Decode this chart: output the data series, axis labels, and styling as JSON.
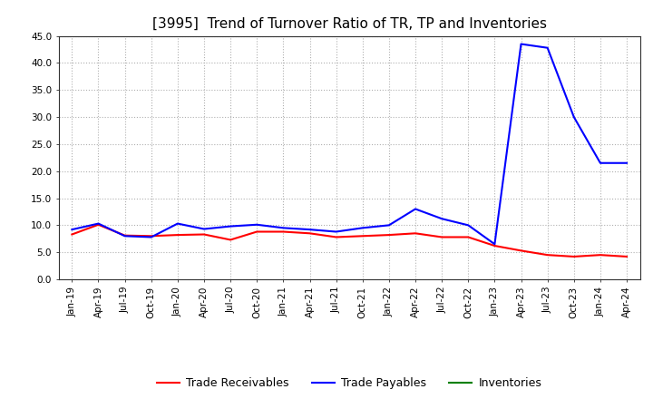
{
  "title": "[3995]  Trend of Turnover Ratio of TR, TP and Inventories",
  "ylim": [
    0.0,
    45.0
  ],
  "yticks": [
    0.0,
    5.0,
    10.0,
    15.0,
    20.0,
    25.0,
    30.0,
    35.0,
    40.0,
    45.0
  ],
  "trade_receivables": {
    "values": [
      8.3,
      10.1,
      8.1,
      8.0,
      8.2,
      8.3,
      7.3,
      8.8,
      8.8,
      8.5,
      7.8,
      8.0,
      8.2,
      8.5,
      7.8,
      7.8,
      6.2,
      5.3,
      4.5,
      4.2,
      4.5,
      4.2
    ],
    "color": "#ff0000",
    "label": "Trade Receivables"
  },
  "trade_payables": {
    "values": [
      9.2,
      10.3,
      8.0,
      7.8,
      10.3,
      9.3,
      9.8,
      10.1,
      9.5,
      9.2,
      8.8,
      9.5,
      10.0,
      13.0,
      11.2,
      10.0,
      6.5,
      43.5,
      42.8,
      30.0,
      21.5,
      21.5
    ],
    "color": "#0000ff",
    "label": "Trade Payables"
  },
  "inventories": {
    "values": [
      null,
      null,
      null,
      null,
      null,
      null,
      null,
      null,
      null,
      null,
      null,
      null,
      null,
      null,
      null,
      null,
      null,
      null,
      null,
      null,
      null,
      null
    ],
    "color": "#008000",
    "label": "Inventories"
  },
  "xtick_labels": [
    "Jan-19",
    "Apr-19",
    "Jul-19",
    "Oct-19",
    "Jan-20",
    "Apr-20",
    "Jul-20",
    "Oct-20",
    "Jan-21",
    "Apr-21",
    "Jul-21",
    "Oct-21",
    "Jan-22",
    "Apr-22",
    "Jul-22",
    "Oct-22",
    "Jan-23",
    "Apr-23",
    "Jul-23",
    "Oct-23",
    "Jan-24",
    "Apr-24"
  ],
  "background_color": "#ffffff",
  "grid_color": "#b0b0b0",
  "title_fontsize": 11,
  "legend_fontsize": 9,
  "tick_fontsize": 7.5,
  "linewidth": 1.5
}
